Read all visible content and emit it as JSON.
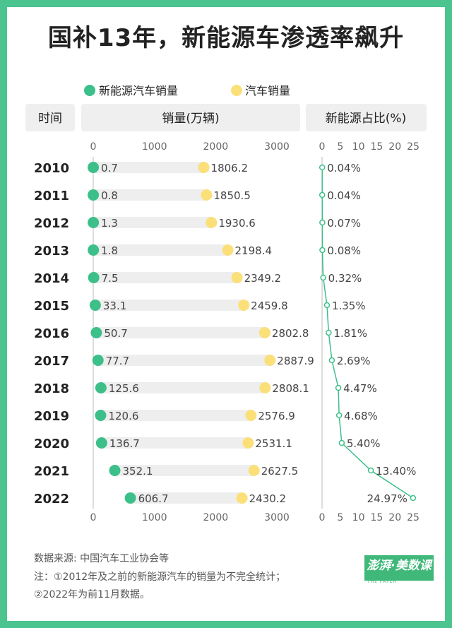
{
  "title": "国补13年，新能源车渗透率飙升",
  "legend": {
    "nev_label": "新能源汽车销量",
    "car_label": "汽车销量"
  },
  "headers": {
    "time": "时间",
    "sales": "销量(万辆)",
    "share": "新能源占比(%)"
  },
  "colors": {
    "background": "#4cc48f",
    "nev": "#3dbf8a",
    "car": "#fbe07a",
    "bar": "#eeeeee",
    "header": "#efefef",
    "line": "#3dbf8a"
  },
  "chart_data": [
    {
      "type": "dot-bar",
      "title": "销量(万辆)",
      "categories": [
        "2010",
        "2011",
        "2012",
        "2013",
        "2014",
        "2015",
        "2016",
        "2017",
        "2018",
        "2019",
        "2020",
        "2021",
        "2022"
      ],
      "series": [
        {
          "name": "新能源汽车销量",
          "values": [
            0.7,
            0.8,
            1.3,
            1.8,
            7.5,
            33.1,
            50.7,
            77.7,
            125.6,
            120.6,
            136.7,
            352.1,
            606.7
          ],
          "labels": [
            "0.7",
            "0.8",
            "1.3",
            "1.8",
            "7.5",
            "33.1",
            "50.7",
            "77.7",
            "125.6",
            "120.6",
            "136.7",
            "352.1",
            "606.7"
          ]
        },
        {
          "name": "汽车销量",
          "values": [
            1806.2,
            1850.5,
            1930.6,
            2198.4,
            2349.2,
            2459.8,
            2802.8,
            2887.9,
            2808.1,
            2576.9,
            2531.1,
            2627.5,
            2430.2
          ],
          "labels": [
            "1806.2",
            "1850.5",
            "1930.6",
            "2198.4",
            "2349.2",
            "2459.8",
            "2802.8",
            "2887.9",
            "2808.1",
            "2576.9",
            "2531.1",
            "2627.5",
            "2430.2"
          ]
        }
      ],
      "xlim": [
        0,
        3000
      ],
      "xticks": [
        "0",
        "1000",
        "2000",
        "3000"
      ]
    },
    {
      "type": "line",
      "title": "新能源占比(%)",
      "categories": [
        "2010",
        "2011",
        "2012",
        "2013",
        "2014",
        "2015",
        "2016",
        "2017",
        "2018",
        "2019",
        "2020",
        "2021",
        "2022"
      ],
      "values": [
        0.04,
        0.04,
        0.07,
        0.08,
        0.32,
        1.35,
        1.81,
        2.69,
        4.47,
        4.68,
        5.4,
        13.4,
        24.97
      ],
      "labels": [
        "0.04%",
        "0.04%",
        "0.07%",
        "0.08%",
        "0.32%",
        "1.35%",
        "1.81%",
        "2.69%",
        "4.47%",
        "4.68%",
        "5.40%",
        "13.40%",
        "24.97%"
      ],
      "xlim": [
        0,
        25
      ],
      "xticks": [
        "0",
        "5",
        "10",
        "15",
        "20",
        "25"
      ]
    }
  ],
  "notes": {
    "source": "数据来源:  中国汽车工业协会等",
    "note1": "注：①2012年及之前的新能源汽车的销量为不完全统计；",
    "note2": "②2022年为前11月数据。"
  },
  "brand": {
    "name": "澎湃·美数课",
    "sub": "THE PAPER"
  }
}
